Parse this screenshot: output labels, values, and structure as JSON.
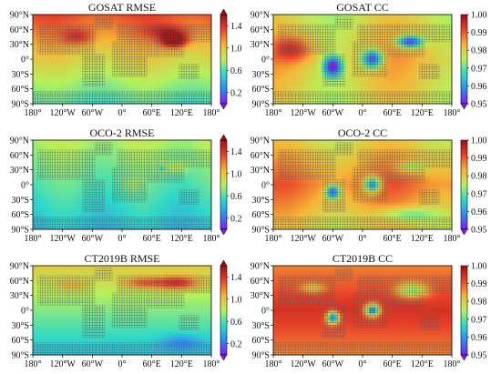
{
  "chart_data": [
    {
      "type": "heatmap",
      "title": "GOSAT RMSE",
      "metric": "RMSE",
      "field": "rmse_gosat",
      "x_ticks": [
        "180°",
        "120°W",
        "60°W",
        "0°",
        "60°E",
        "120°E",
        "180°"
      ],
      "y_ticks": [
        "90°N",
        "60°N",
        "30°N",
        "0°",
        "30°S",
        "60°S",
        "90°S"
      ],
      "colorbar": {
        "ticks": [
          "1.4",
          "1.0",
          "0.6",
          "0.2"
        ],
        "range": [
          0.0,
          1.6
        ],
        "extend": "both"
      },
      "colors": [
        "#7c1cf0",
        "#2f8cf5",
        "#2fd9c7",
        "#b7f05a",
        "#f5b537",
        "#e8402a",
        "#a00f10"
      ]
    },
    {
      "type": "heatmap",
      "title": "GOSAT CC",
      "metric": "CC",
      "field": "cc_gosat",
      "x_ticks": [
        "180°",
        "120°W",
        "60°W",
        "0°",
        "60°E",
        "120°E",
        "180°"
      ],
      "y_ticks": [
        "90°N",
        "60°N",
        "30°N",
        "0°",
        "30°S",
        "60°S",
        "90°S"
      ],
      "colorbar": {
        "ticks": [
          "1.00",
          "0.99",
          "0.98",
          "0.97",
          "0.96",
          "0.95"
        ],
        "range": [
          0.95,
          1.0
        ],
        "extend": "min"
      },
      "colors": [
        "#7c1cf0",
        "#2f8cf5",
        "#2fd9c7",
        "#b7f05a",
        "#f5b537",
        "#e8402a",
        "#a00f10"
      ]
    },
    {
      "type": "heatmap",
      "title": "OCO-2 RMSE",
      "metric": "RMSE",
      "field": "rmse_oco2",
      "x_ticks": [
        "180°",
        "120°W",
        "60°W",
        "0°",
        "60°E",
        "120°E",
        "180°"
      ],
      "y_ticks": [
        "90°N",
        "60°N",
        "30°N",
        "0°",
        "30°S",
        "60°S",
        "90°S"
      ],
      "colorbar": {
        "ticks": [
          "1.4",
          "1.0",
          "0.6",
          "0.2"
        ],
        "range": [
          0.0,
          1.6
        ],
        "extend": "both"
      },
      "colors": [
        "#7c1cf0",
        "#2f8cf5",
        "#2fd9c7",
        "#b7f05a",
        "#f5b537",
        "#e8402a",
        "#a00f10"
      ]
    },
    {
      "type": "heatmap",
      "title": "OCO-2 CC",
      "metric": "CC",
      "field": "cc_oco2",
      "x_ticks": [
        "180°",
        "120°W",
        "60°W",
        "0°",
        "60°E",
        "120°E",
        "180°"
      ],
      "y_ticks": [
        "90°N",
        "60°N",
        "30°N",
        "0°",
        "30°S",
        "60°S",
        "90°S"
      ],
      "colorbar": {
        "ticks": [
          "1.00",
          "0.99",
          "0.98",
          "0.97",
          "0.96",
          "0.95"
        ],
        "range": [
          0.95,
          1.0
        ],
        "extend": "min"
      },
      "colors": [
        "#7c1cf0",
        "#2f8cf5",
        "#2fd9c7",
        "#b7f05a",
        "#f5b537",
        "#e8402a",
        "#a00f10"
      ]
    },
    {
      "type": "heatmap",
      "title": "CT2019B RMSE",
      "metric": "RMSE",
      "field": "rmse_ct",
      "x_ticks": [
        "180°",
        "120°W",
        "60°W",
        "0°",
        "60°E",
        "120°E",
        "180°"
      ],
      "y_ticks": [
        "90°N",
        "60°N",
        "30°N",
        "0°",
        "30°S",
        "60°S",
        "90°S"
      ],
      "colorbar": {
        "ticks": [
          "1.4",
          "1.0",
          "0.6",
          "0.2"
        ],
        "range": [
          0.0,
          1.6
        ],
        "extend": "both"
      },
      "colors": [
        "#7c1cf0",
        "#2f8cf5",
        "#2fd9c7",
        "#b7f05a",
        "#f5b537",
        "#e8402a",
        "#a00f10"
      ]
    },
    {
      "type": "heatmap",
      "title": "CT2019B CC",
      "metric": "CC",
      "field": "cc_ct",
      "x_ticks": [
        "180°",
        "120°W",
        "60°W",
        "0°",
        "60°E",
        "120°E",
        "180°"
      ],
      "y_ticks": [
        "90°N",
        "60°N",
        "30°N",
        "0°",
        "30°S",
        "60°S",
        "90°S"
      ],
      "colorbar": {
        "ticks": [
          "1.00",
          "0.99",
          "0.98",
          "0.97",
          "0.96",
          "0.95"
        ],
        "range": [
          0.95,
          1.0
        ],
        "extend": "min"
      },
      "colors": [
        "#7c1cf0",
        "#2f8cf5",
        "#2fd9c7",
        "#b7f05a",
        "#f5b537",
        "#e8402a",
        "#a00f10"
      ]
    }
  ]
}
